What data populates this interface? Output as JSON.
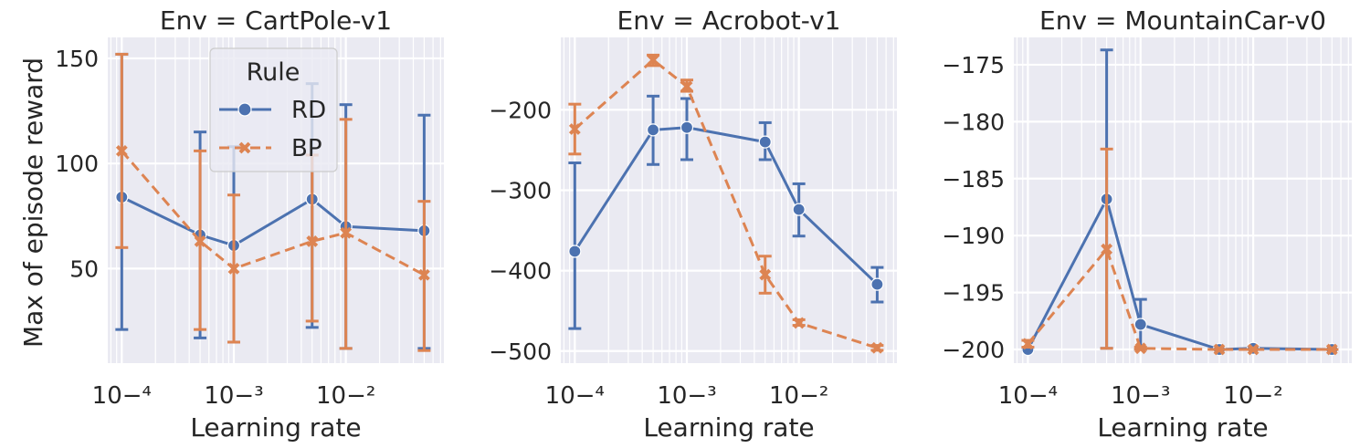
{
  "figure": {
    "ylabel": "Max of episode reward",
    "legend": {
      "title": "Rule",
      "placement": "upper-center (first panel)"
    }
  },
  "colors": {
    "RD": "#4c72b0",
    "BP": "#dd8452",
    "panel_bg": "#eaeaf2",
    "grid": "#ffffff"
  },
  "chart_data": [
    {
      "type": "line",
      "title": "Env = CartPole-v1",
      "xlabel": "Learning rate",
      "ylabel": "Max of episode reward",
      "xscale": "log",
      "xlim": [
        7.5e-05,
        0.075
      ],
      "ylim": [
        5,
        160
      ],
      "yticks": [
        50,
        100,
        150
      ],
      "xticks": [
        0.0001,
        0.001,
        0.01
      ],
      "grid": true,
      "legend": true,
      "x": [
        0.0001,
        0.0005,
        0.001,
        0.005,
        0.01,
        0.05
      ],
      "series": [
        {
          "name": "RD",
          "marker": "circle",
          "dash": "solid",
          "values": [
            84,
            66,
            61,
            83,
            70,
            68
          ],
          "err_low": [
            21,
            17,
            15,
            22,
            12,
            12
          ],
          "err_high": [
            152,
            115,
            108,
            138,
            128,
            123
          ]
        },
        {
          "name": "BP",
          "marker": "x",
          "dash": "dashed",
          "values": [
            106,
            63,
            50,
            63,
            67,
            47
          ],
          "err_low": [
            60,
            21,
            15,
            25,
            12,
            11
          ],
          "err_high": [
            152,
            106,
            85,
            104,
            121,
            82
          ]
        }
      ]
    },
    {
      "type": "line",
      "title": "Env = Acrobot-v1",
      "xlabel": "Learning rate",
      "ylabel": "",
      "xscale": "log",
      "xlim": [
        7.5e-05,
        0.075
      ],
      "ylim": [
        -515,
        -110
      ],
      "yticks": [
        -200,
        -300,
        -400,
        -500
      ],
      "xticks": [
        0.0001,
        0.001,
        0.01
      ],
      "grid": true,
      "legend": false,
      "x": [
        0.0001,
        0.0005,
        0.001,
        0.005,
        0.01,
        0.05
      ],
      "series": [
        {
          "name": "RD",
          "marker": "circle",
          "dash": "solid",
          "values": [
            -376,
            -225,
            -222,
            -240,
            -324,
            -417
          ],
          "err_low": [
            -472,
            -268,
            -262,
            -262,
            -357,
            -439
          ],
          "err_high": [
            -266,
            -183,
            -186,
            -216,
            -292,
            -396
          ]
        },
        {
          "name": "BP",
          "marker": "x",
          "dash": "dashed",
          "values": [
            -224,
            -138,
            -171,
            -405,
            -465,
            -496
          ],
          "err_low": [
            -255,
            -145,
            -177,
            -428,
            -468,
            -499
          ],
          "err_high": [
            -193,
            -132,
            -163,
            -382,
            -461,
            -493
          ]
        }
      ]
    },
    {
      "type": "line",
      "title": "Env = MountainCar-v0",
      "xlabel": "Learning rate",
      "ylabel": "",
      "xscale": "log",
      "xlim": [
        7.5e-05,
        0.075
      ],
      "ylim": [
        -201.2,
        -172.6
      ],
      "yticks": [
        -175,
        -180,
        -185,
        -190,
        -195,
        -200
      ],
      "xticks": [
        0.0001,
        0.001,
        0.01
      ],
      "grid": true,
      "legend": false,
      "x": [
        0.0001,
        0.0005,
        0.001,
        0.005,
        0.01,
        0.05
      ],
      "series": [
        {
          "name": "RD",
          "marker": "circle",
          "dash": "solid",
          "values": [
            -200,
            -186.8,
            -197.8,
            -200,
            -199.9,
            -200
          ],
          "err_low": [
            -200,
            -199.9,
            -200,
            -200,
            -200,
            -200
          ],
          "err_high": [
            -200,
            -173.7,
            -195.6,
            -200,
            -199.8,
            -200
          ]
        },
        {
          "name": "BP",
          "marker": "x",
          "dash": "dashed",
          "values": [
            -199.5,
            -191.2,
            -199.9,
            -200,
            -200,
            -200
          ],
          "err_low": [
            -199.8,
            -199.9,
            -200,
            -200,
            -200,
            -200
          ],
          "err_high": [
            -199.2,
            -182.4,
            -199.8,
            -200,
            -200,
            -200
          ]
        }
      ]
    }
  ]
}
